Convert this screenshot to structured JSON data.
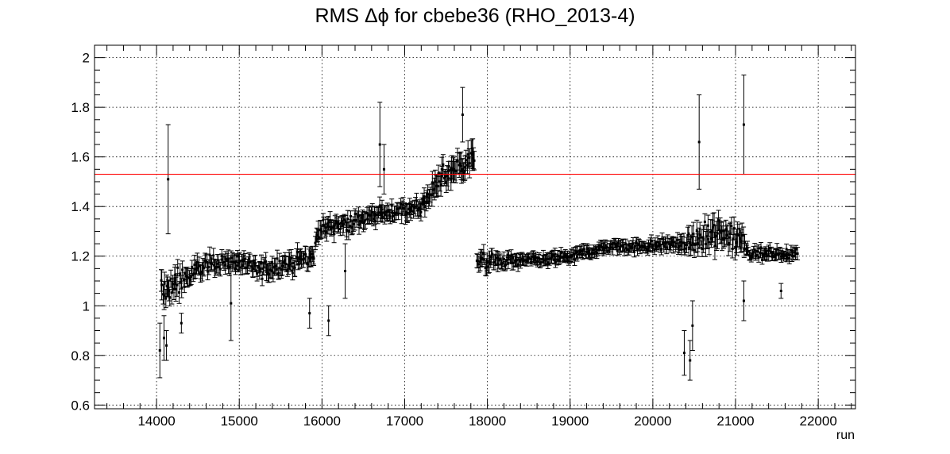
{
  "chart_data": {
    "type": "scatter",
    "title": "RMS Δϕ for cbebe36 (RHO_2013-4)",
    "xlabel": "run",
    "ylabel": "",
    "xlim": [
      13250,
      22450
    ],
    "ylim": [
      0.585,
      2.05
    ],
    "x_ticks": [
      14000,
      15000,
      16000,
      17000,
      18000,
      19000,
      20000,
      21000,
      22000
    ],
    "y_ticks": [
      0.6,
      0.8,
      1,
      1.2,
      1.4,
      1.6,
      1.8,
      2
    ],
    "x_tick_labels": [
      "14000",
      "15000",
      "16000",
      "17000",
      "18000",
      "19000",
      "20000",
      "21000",
      "22000"
    ],
    "y_tick_labels": [
      "0.6",
      "0.8",
      "1",
      "1.2",
      "1.4",
      "1.6",
      "1.8",
      "2"
    ],
    "grid": true,
    "legend": "none",
    "reference_line": {
      "y": 1.53,
      "color": "#ff0000"
    },
    "marker_color": "#000000",
    "trend": [
      {
        "x": 14050,
        "y": 1.05,
        "spread": 0.06,
        "err": 0.05
      },
      {
        "x": 14200,
        "y": 1.08,
        "spread": 0.06,
        "err": 0.04
      },
      {
        "x": 14400,
        "y": 1.12,
        "spread": 0.04,
        "err": 0.03
      },
      {
        "x": 14600,
        "y": 1.17,
        "spread": 0.03,
        "err": 0.03
      },
      {
        "x": 15000,
        "y": 1.18,
        "spread": 0.03,
        "err": 0.03
      },
      {
        "x": 15150,
        "y": 1.14,
        "spread": 0.04,
        "err": 0.03
      },
      {
        "x": 15300,
        "y": 1.15,
        "spread": 0.03,
        "err": 0.03
      },
      {
        "x": 15900,
        "y": 1.2,
        "spread": 0.04,
        "err": 0.03
      },
      {
        "x": 15950,
        "y": 1.31,
        "spread": 0.03,
        "err": 0.03
      },
      {
        "x": 16300,
        "y": 1.33,
        "spread": 0.03,
        "err": 0.03
      },
      {
        "x": 16700,
        "y": 1.37,
        "spread": 0.03,
        "err": 0.03
      },
      {
        "x": 17200,
        "y": 1.4,
        "spread": 0.03,
        "err": 0.03
      },
      {
        "x": 17450,
        "y": 1.52,
        "spread": 0.04,
        "err": 0.04
      },
      {
        "x": 17850,
        "y": 1.6,
        "spread": 0.05,
        "err": 0.05
      },
      {
        "x": 17870,
        "y": 1.18,
        "spread": 0.03,
        "err": 0.03
      },
      {
        "x": 18500,
        "y": 1.18,
        "spread": 0.02,
        "err": 0.02
      },
      {
        "x": 19000,
        "y": 1.2,
        "spread": 0.02,
        "err": 0.02
      },
      {
        "x": 19500,
        "y": 1.24,
        "spread": 0.02,
        "err": 0.02
      },
      {
        "x": 20000,
        "y": 1.24,
        "spread": 0.02,
        "err": 0.02
      },
      {
        "x": 20400,
        "y": 1.25,
        "spread": 0.03,
        "err": 0.03
      },
      {
        "x": 20700,
        "y": 1.28,
        "spread": 0.06,
        "err": 0.05
      },
      {
        "x": 21100,
        "y": 1.28,
        "spread": 0.05,
        "err": 0.04
      },
      {
        "x": 21150,
        "y": 1.21,
        "spread": 0.02,
        "err": 0.02
      },
      {
        "x": 21750,
        "y": 1.21,
        "spread": 0.02,
        "err": 0.02
      }
    ],
    "notable_points": [
      {
        "x": 14040,
        "y": 0.82,
        "err": 0.11
      },
      {
        "x": 14090,
        "y": 0.87,
        "err": 0.09
      },
      {
        "x": 14120,
        "y": 0.84,
        "err": 0.06
      },
      {
        "x": 14140,
        "y": 1.51,
        "err": 0.22
      },
      {
        "x": 14300,
        "y": 0.93,
        "err": 0.04
      },
      {
        "x": 14900,
        "y": 1.01,
        "err": 0.15
      },
      {
        "x": 15850,
        "y": 0.97,
        "err": 0.06
      },
      {
        "x": 16080,
        "y": 0.94,
        "err": 0.06
      },
      {
        "x": 16280,
        "y": 1.14,
        "err": 0.11
      },
      {
        "x": 16700,
        "y": 1.65,
        "err": 0.17
      },
      {
        "x": 16750,
        "y": 1.55,
        "err": 0.1
      },
      {
        "x": 17700,
        "y": 1.77,
        "err": 0.11
      },
      {
        "x": 20380,
        "y": 0.81,
        "err": 0.09
      },
      {
        "x": 20450,
        "y": 0.78,
        "err": 0.08
      },
      {
        "x": 20480,
        "y": 0.92,
        "err": 0.1
      },
      {
        "x": 20560,
        "y": 1.66,
        "err": 0.19
      },
      {
        "x": 21100,
        "y": 1.73,
        "err": 0.2
      },
      {
        "x": 21100,
        "y": 1.02,
        "err": 0.08
      },
      {
        "x": 21550,
        "y": 1.06,
        "err": 0.03
      }
    ]
  }
}
